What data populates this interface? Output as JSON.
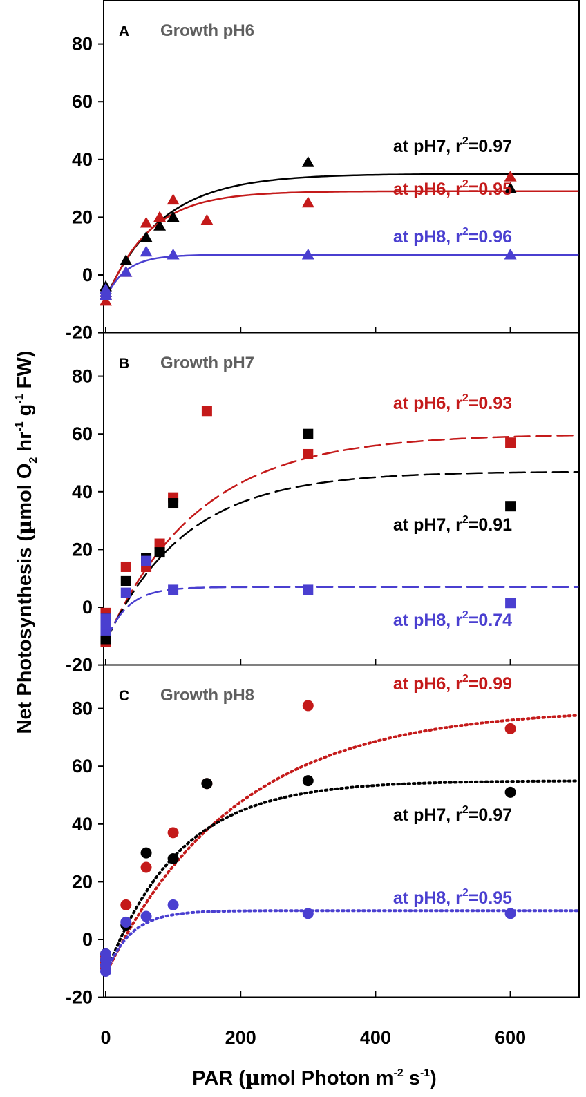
{
  "chart_data": {
    "type": "scatter",
    "colors": {
      "pH6": "#c41a1a",
      "pH7": "#000000",
      "pH8": "#4a3fd0",
      "panel_title": "#5f5f5f"
    },
    "xlabel": "PAR (µmol Photon m-2 s-1)",
    "xlabel_parts": {
      "a": "PAR (",
      "mu": "µ",
      "b": "mol Photon m",
      "e1": "-2",
      "c": " s",
      "e2": "-1",
      "d": ")"
    },
    "ylabel": "Net Photosynthesis (µmol O2 hr-1 g-1 FW)",
    "ylabel_parts": {
      "a": "Net Photosynthesis (",
      "mu": "µ",
      "b": "mol O",
      "sub": "2",
      "c": " hr",
      "e1": "-1",
      "d": " g",
      "e2": "-1",
      "e": " FW)"
    },
    "xlim": [
      -10,
      700
    ],
    "ylim": [
      -20,
      95
    ],
    "xticks": [
      "0",
      "200",
      "400",
      "600"
    ],
    "xtick_values": [
      0,
      200,
      400,
      600
    ],
    "yticks": [
      "-20",
      "0",
      "20",
      "40",
      "60",
      "80"
    ],
    "ytick_values": [
      -20,
      0,
      20,
      40,
      60,
      80
    ],
    "panels": [
      {
        "letter": "A",
        "title": "Growth pH6",
        "marker": "triangle",
        "line_style": "solid",
        "series": [
          {
            "name": "at pH7",
            "color_key": "pH7",
            "r2": "0.97",
            "label_prefix": "at pH7, r",
            "label_exp": "2",
            "label_suffix": "=0.97",
            "x": [
              0,
              0,
              0,
              30,
              60,
              80,
              100,
              300,
              600
            ],
            "y": [
              -7,
              -5,
              -4,
              5,
              13,
              17,
              20,
              39,
              30
            ],
            "fit": {
              "pmax": 43,
              "alpha": 0.52,
              "rd": 8
            }
          },
          {
            "name": "at pH6",
            "color_key": "pH6",
            "r2": "0.95",
            "label_prefix": "at pH6, r",
            "label_exp": "2",
            "label_suffix": "=0.95",
            "x": [
              0,
              0,
              0,
              30,
              60,
              80,
              100,
              150,
              300,
              600
            ],
            "y": [
              -9,
              -7,
              -6,
              1,
              18,
              20,
              26,
              19,
              25,
              34
            ],
            "fit": {
              "pmax": 38,
              "alpha": 0.6,
              "rd": 9
            }
          },
          {
            "name": "at pH8",
            "color_key": "pH8",
            "r2": "0.96",
            "label_prefix": "at pH8, r",
            "label_exp": "2",
            "label_suffix": "=0.96",
            "x": [
              0,
              0,
              0,
              30,
              60,
              100,
              300,
              600
            ],
            "y": [
              -7,
              -6,
              -5,
              1,
              8,
              7,
              7,
              7
            ],
            "fit": {
              "pmax": 15,
              "alpha": 0.5,
              "rd": 8
            }
          }
        ]
      },
      {
        "letter": "B",
        "title": "Growth pH7",
        "marker": "square",
        "line_style": "dashed",
        "series": [
          {
            "name": "at pH6",
            "color_key": "pH6",
            "r2": "0.93",
            "label_prefix": "at pH6, r",
            "label_exp": "2",
            "label_suffix": "=0.93",
            "x": [
              0,
              0,
              0,
              30,
              60,
              80,
              100,
              150,
              300,
              600
            ],
            "y": [
              -12,
              -10,
              -2,
              14,
              14,
              22,
              38,
              68,
              53,
              57
            ],
            "fit": {
              "pmax": 72,
              "alpha": 0.52,
              "rd": 12
            }
          },
          {
            "name": "at pH7",
            "color_key": "pH7",
            "r2": "0.91",
            "label_prefix": "at pH7, r",
            "label_exp": "2",
            "label_suffix": "=0.91",
            "x": [
              0,
              0,
              0,
              30,
              60,
              80,
              100,
              300,
              600
            ],
            "y": [
              -11,
              -8,
              -4,
              9,
              17,
              19,
              36,
              60,
              35
            ],
            "fit": {
              "pmax": 59,
              "alpha": 0.5,
              "rd": 12
            }
          },
          {
            "name": "at pH8",
            "color_key": "pH8",
            "r2": "0.74",
            "label_prefix": "at pH8, r",
            "label_exp": "2",
            "label_suffix": "=0.74",
            "x": [
              0,
              0,
              0,
              30,
              60,
              100,
              300,
              600
            ],
            "y": [
              -8,
              -6,
              -4,
              5,
              16,
              6,
              6,
              1.5
            ],
            "fit": {
              "pmax": 19,
              "alpha": 0.6,
              "rd": 12
            }
          }
        ]
      },
      {
        "letter": "C",
        "title": "Growth pH8",
        "marker": "circle",
        "line_style": "dotted",
        "series": [
          {
            "name": "at pH6",
            "color_key": "pH6",
            "r2": "0.99",
            "label_prefix": "at pH6, r",
            "label_exp": "2",
            "label_suffix": "=0.99",
            "x": [
              0,
              0,
              0,
              30,
              60,
              100,
              150,
              300,
              600
            ],
            "y": [
              -10,
              -8,
              -6,
              12,
              25,
              37,
              54,
              81,
              73
            ],
            "fit": {
              "pmax": 92,
              "alpha": 0.48,
              "rd": 12
            }
          },
          {
            "name": "at pH7",
            "color_key": "pH7",
            "r2": "0.97",
            "label_prefix": "at pH7, r",
            "label_exp": "2",
            "label_suffix": "=0.97",
            "x": [
              0,
              0,
              0,
              30,
              60,
              100,
              150,
              300,
              600
            ],
            "y": [
              -9,
              -7,
              -5,
              5,
              30,
              28,
              54,
              55,
              51
            ],
            "fit": {
              "pmax": 67,
              "alpha": 0.62,
              "rd": 12
            }
          },
          {
            "name": "at pH8",
            "color_key": "pH8",
            "r2": "0.95",
            "label_prefix": "at pH8, r",
            "label_exp": "2",
            "label_suffix": "=0.95",
            "x": [
              0,
              0,
              0,
              0,
              30,
              60,
              100,
              300,
              600
            ],
            "y": [
              -11,
              -9,
              -7,
              -5,
              6,
              8,
              12,
              9,
              9
            ],
            "fit": {
              "pmax": 22,
              "alpha": 0.6,
              "rd": 12
            }
          }
        ]
      }
    ]
  }
}
